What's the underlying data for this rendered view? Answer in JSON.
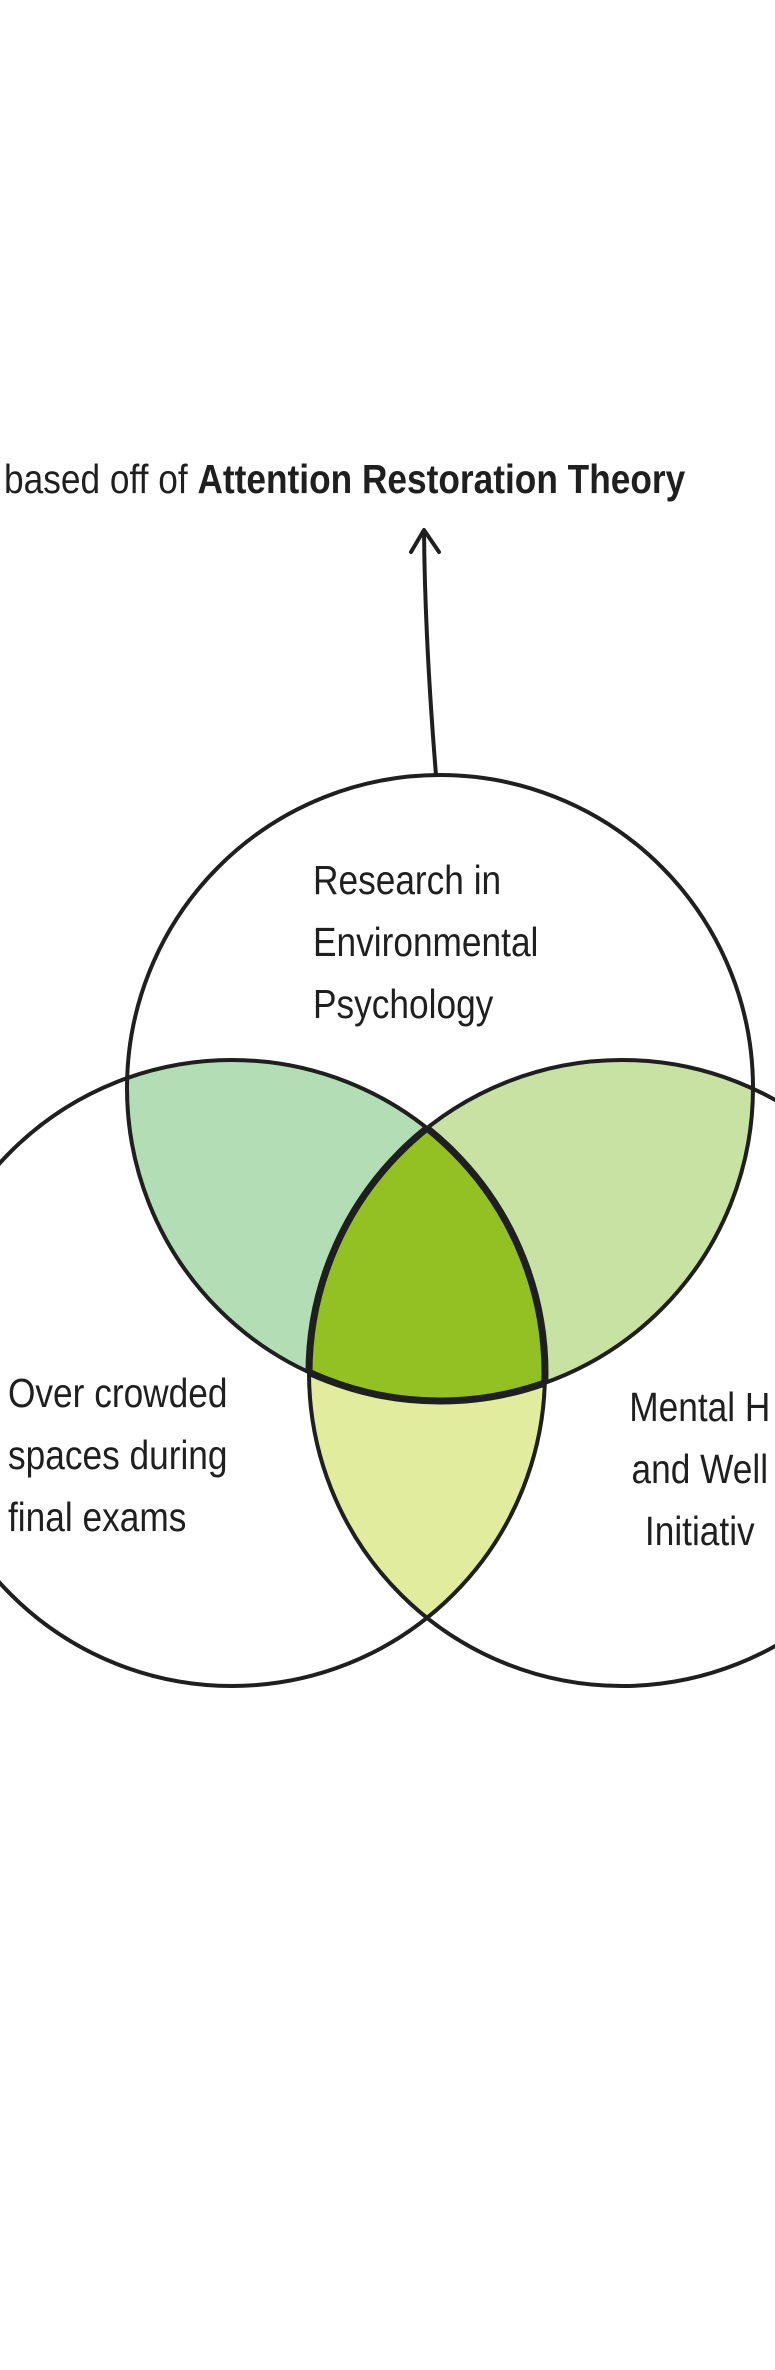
{
  "header": {
    "prefix": "based off of",
    "theory": "Attention Restoration Theory"
  },
  "circles": {
    "top": {
      "lines": [
        "Research in",
        "Environmental",
        "Psychology"
      ]
    },
    "left": {
      "lines": [
        "Over crowded",
        "spaces during",
        "final exams"
      ]
    },
    "right": {
      "lines": [
        "Mental H",
        "and Well",
        "Initiativ"
      ]
    }
  },
  "colors": {
    "top_left_overlap": "#b3ddb5",
    "top_right_overlap": "#c7e2a3",
    "left_right_overlap": "#e2ec9f",
    "center_overlap": "#93c023",
    "stroke": "#1f1f1f"
  }
}
